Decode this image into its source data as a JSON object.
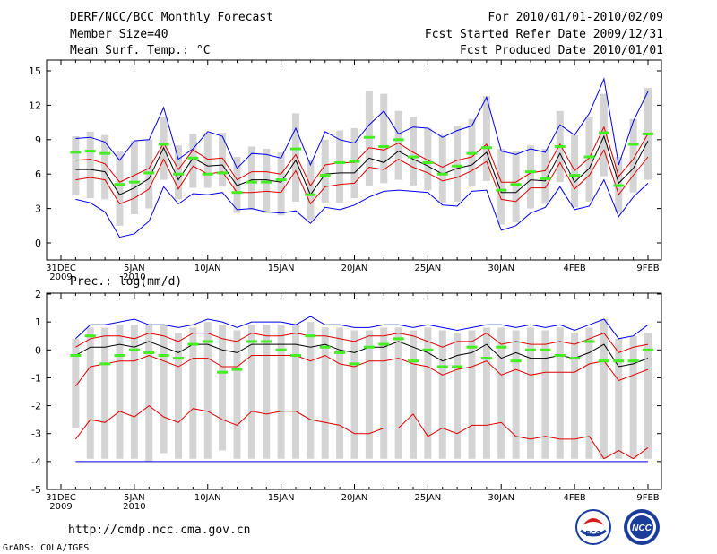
{
  "header": {
    "title": "DERF/NCC/BCC Monthly Forecast",
    "member_size": "Member Size=40",
    "variable": "Mean Surf. Temp.: °C",
    "forecast_period": "For 2010/01/01-2010/02/09",
    "fcst_started": "Fcst Started Refer Date 2009/12/31",
    "fcst_produced": "Fcst Produced Date 2010/01/01"
  },
  "footer": {
    "url": "http://cmdp.ncc.cma.gov.cn",
    "grads": "GrADS: COLA/IGES",
    "logo_bcc": "BCC",
    "logo_ncc": "NCC"
  },
  "colors": {
    "box": "#d4d4d4",
    "median": "#000000",
    "quartile": "#dd0000",
    "extreme": "#0000ee",
    "obs": "#44ee22",
    "minbase": "#0000ee"
  },
  "chart_data": [
    {
      "type": "box",
      "title": "Mean Surf. Temp.: °C",
      "x_start_day": 0,
      "x_end_day": 40,
      "xlim": [
        0,
        40
      ],
      "ylim": [
        -1,
        16
      ],
      "yticks": [
        0,
        3,
        6,
        9,
        12,
        15
      ],
      "xtick_days": [
        0,
        5,
        10,
        15,
        20,
        25,
        30,
        35,
        40
      ],
      "xtick_labels": [
        "31DEC\n2009",
        "5JAN\n2010",
        "10JAN",
        "15JAN",
        "20JAN",
        "25JAN",
        "30JAN",
        "4FEB",
        "9FEB"
      ],
      "series": [
        {
          "name": "median",
          "values": [
            6.4,
            6.4,
            6.2,
            4.2,
            4.8,
            5.6,
            8.3,
            5.5,
            7.4,
            6.7,
            6.8,
            5.0,
            5.5,
            5.5,
            5.3,
            7.2,
            4.2,
            6.0,
            6.1,
            6.1,
            7.4,
            7.0,
            8.0,
            7.3,
            6.7,
            6.0,
            6.5,
            6.8,
            7.9,
            4.4,
            4.4,
            5.5,
            5.4,
            7.8,
            5.3,
            6.5,
            9.3,
            5.2,
            6.5,
            8.9
          ]
        },
        {
          "name": "q_upper",
          "values": [
            7.2,
            7.3,
            6.9,
            5.3,
            5.9,
            6.5,
            8.7,
            6.4,
            8.1,
            7.3,
            7.4,
            5.5,
            6.2,
            6.2,
            6.0,
            7.7,
            5.0,
            6.8,
            7.0,
            7.0,
            8.3,
            8.1,
            8.7,
            7.9,
            7.2,
            6.6,
            7.2,
            7.5,
            8.6,
            5.3,
            5.3,
            6.1,
            6.3,
            8.6,
            6.3,
            7.4,
            10.1,
            5.8,
            7.3,
            9.5
          ]
        },
        {
          "name": "q_lower",
          "values": [
            5.5,
            5.7,
            5.5,
            3.4,
            3.9,
            4.7,
            7.3,
            4.7,
            6.7,
            6.0,
            6.2,
            4.4,
            4.4,
            4.5,
            4.4,
            6.3,
            3.4,
            4.9,
            5.1,
            5.2,
            6.6,
            6.4,
            7.3,
            6.6,
            6.1,
            5.4,
            5.7,
            6.3,
            7.1,
            3.8,
            3.6,
            4.8,
            4.8,
            7.0,
            4.7,
            5.9,
            8.1,
            4.2,
            5.9,
            7.5
          ]
        },
        {
          "name": "max",
          "values": [
            9.1,
            9.2,
            8.8,
            7.2,
            8.9,
            9.0,
            11.8,
            7.3,
            8.2,
            9.7,
            9.3,
            6.5,
            7.8,
            7.7,
            7.4,
            10.0,
            6.8,
            9.7,
            9.0,
            8.7,
            10.3,
            11.5,
            9.5,
            10.1,
            10.0,
            9.2,
            9.8,
            10.2,
            12.7,
            8.0,
            7.7,
            8.2,
            7.9,
            10.3,
            9.4,
            11.3,
            14.3,
            6.8,
            10.6,
            13.2
          ]
        },
        {
          "name": "min",
          "values": [
            3.8,
            3.5,
            2.7,
            0.5,
            0.8,
            1.9,
            4.9,
            3.4,
            4.3,
            4.2,
            4.4,
            2.9,
            3.0,
            2.7,
            2.6,
            2.8,
            1.7,
            3.1,
            2.9,
            3.3,
            4.0,
            4.5,
            4.6,
            4.5,
            4.4,
            3.3,
            3.2,
            4.5,
            4.6,
            1.1,
            1.5,
            2.6,
            3.1,
            4.9,
            2.9,
            3.2,
            5.5,
            2.3,
            4.0,
            5.2
          ]
        },
        {
          "name": "obs",
          "values": [
            7.9,
            8.0,
            7.8,
            5.1,
            5.3,
            6.1,
            8.6,
            6.0,
            7.4,
            6.0,
            6.1,
            4.4,
            5.3,
            5.3,
            5.5,
            8.2,
            4.2,
            5.9,
            7.0,
            7.1,
            9.2,
            8.4,
            9.0,
            7.5,
            7.0,
            6.0,
            6.7,
            7.8,
            8.3,
            4.6,
            5.1,
            6.2,
            5.6,
            8.4,
            5.9,
            7.5,
            9.6,
            5.0,
            8.6,
            9.5
          ]
        },
        {
          "name": "box_top",
          "values": [
            9.3,
            9.7,
            9.4,
            8.0,
            8.9,
            9.0,
            11.0,
            8.5,
            9.5,
            9.6,
            9.6,
            7.5,
            8.4,
            8.2,
            7.9,
            11.3,
            7.2,
            9.0,
            9.8,
            10.0,
            13.2,
            13.0,
            11.5,
            11.0,
            10.0,
            9.4,
            10.2,
            10.8,
            12.8,
            8.2,
            8.0,
            8.5,
            8.2,
            11.5,
            9.4,
            11.0,
            13.0,
            7.5,
            10.8,
            13.5
          ]
        },
        {
          "name": "box_bottom",
          "values": [
            4.2,
            3.9,
            3.8,
            1.5,
            2.5,
            3.0,
            5.5,
            3.8,
            4.8,
            4.8,
            4.9,
            2.6,
            2.9,
            2.6,
            2.4,
            3.6,
            2.0,
            3.5,
            3.5,
            3.9,
            5.0,
            5.2,
            5.5,
            5.0,
            4.6,
            3.5,
            3.6,
            4.9,
            5.4,
            1.6,
            1.8,
            3.0,
            3.4,
            5.3,
            3.1,
            3.6,
            5.8,
            2.7,
            4.4,
            5.5
          ]
        }
      ]
    },
    {
      "type": "box",
      "title": "Prec.: log(mm/d)",
      "x_start_day": 0,
      "x_end_day": 40,
      "xlim": [
        0,
        40
      ],
      "ylim": [
        -5,
        2
      ],
      "yticks": [
        -5,
        -4,
        -3,
        -2,
        -1,
        0,
        1,
        2
      ],
      "xtick_days": [
        0,
        5,
        10,
        15,
        20,
        25,
        30,
        35,
        40
      ],
      "xtick_labels": [
        "31DEC\n2009",
        "5JAN\n2010",
        "10JAN",
        "15JAN",
        "20JAN",
        "25JAN",
        "30JAN",
        "4FEB",
        "9FEB"
      ],
      "series": [
        {
          "name": "median",
          "values": [
            -0.2,
            0.1,
            0.1,
            0.2,
            0.1,
            0.3,
            0.1,
            -0.1,
            0.2,
            0.2,
            0.0,
            -0.1,
            0.2,
            0.2,
            0.2,
            0.2,
            0.1,
            0.2,
            0.0,
            -0.1,
            0.1,
            0.1,
            0.3,
            0.1,
            -0.1,
            -0.4,
            -0.2,
            -0.1,
            0.2,
            -0.3,
            -0.1,
            -0.3,
            -0.3,
            -0.2,
            -0.3,
            -0.1,
            0.2,
            -0.6,
            -0.5,
            -0.3
          ]
        },
        {
          "name": "q_upper",
          "values": [
            0.1,
            0.4,
            0.5,
            0.5,
            0.4,
            0.6,
            0.5,
            0.3,
            0.6,
            0.6,
            0.4,
            0.3,
            0.6,
            0.5,
            0.5,
            0.6,
            0.5,
            0.5,
            0.4,
            0.3,
            0.5,
            0.5,
            0.6,
            0.5,
            0.3,
            0.1,
            0.3,
            0.3,
            0.6,
            0.2,
            0.3,
            0.2,
            0.2,
            0.3,
            0.2,
            0.4,
            0.6,
            -0.1,
            0.1,
            0.2
          ]
        },
        {
          "name": "q_lower",
          "values": [
            -1.3,
            -0.6,
            -0.5,
            -0.4,
            -0.4,
            -0.2,
            -0.4,
            -0.6,
            -0.3,
            -0.3,
            -0.6,
            -0.6,
            -0.2,
            -0.2,
            -0.2,
            -0.2,
            -0.4,
            -0.2,
            -0.5,
            -0.6,
            -0.4,
            -0.4,
            -0.3,
            -0.5,
            -0.6,
            -0.9,
            -0.7,
            -0.6,
            -0.4,
            -0.9,
            -0.7,
            -0.9,
            -0.8,
            -0.8,
            -0.8,
            -0.5,
            -0.4,
            -1.1,
            -0.9,
            -0.7
          ]
        },
        {
          "name": "max",
          "values": [
            0.4,
            0.9,
            0.9,
            1.0,
            1.1,
            0.9,
            0.9,
            0.8,
            0.9,
            1.1,
            1.0,
            0.8,
            1.0,
            1.0,
            1.0,
            0.9,
            1.2,
            0.9,
            0.9,
            0.8,
            0.8,
            0.9,
            0.9,
            0.8,
            0.9,
            0.8,
            0.7,
            0.8,
            0.9,
            0.9,
            0.8,
            0.9,
            0.8,
            0.9,
            0.7,
            0.9,
            1.1,
            0.4,
            0.5,
            0.9
          ]
        },
        {
          "name": "q_tail",
          "values": [
            -3.2,
            -2.5,
            -2.6,
            -2.2,
            -2.4,
            -2.0,
            -2.4,
            -2.6,
            -2.1,
            -2.2,
            -2.5,
            -2.7,
            -2.2,
            -2.3,
            -2.2,
            -2.2,
            -2.5,
            -2.6,
            -2.7,
            -3.0,
            -3.0,
            -2.8,
            -2.8,
            -2.3,
            -3.1,
            -2.8,
            -3.0,
            -2.7,
            -2.7,
            -2.6,
            -3.1,
            -3.2,
            -3.1,
            -3.2,
            -3.2,
            -3.1,
            -3.9,
            -3.6,
            -3.9,
            -3.5
          ]
        },
        {
          "name": "obs",
          "values": [
            -0.2,
            0.5,
            -0.5,
            -0.2,
            0.0,
            -0.1,
            -0.2,
            -0.3,
            0.2,
            0.3,
            -0.8,
            -0.7,
            0.3,
            0.3,
            0.0,
            -0.2,
            0.5,
            0.1,
            -0.1,
            -0.5,
            0.1,
            0.2,
            0.4,
            -0.4,
            0.0,
            -0.6,
            -0.6,
            0.1,
            -0.3,
            0.1,
            -0.4,
            0.0,
            0.0,
            -0.2,
            -0.3,
            0.3,
            -0.4,
            -0.4,
            -0.4,
            0.0
          ]
        },
        {
          "name": "box_top",
          "values": [
            0.4,
            0.8,
            0.8,
            0.9,
            0.9,
            0.9,
            0.9,
            0.6,
            0.8,
            1.0,
            0.9,
            0.7,
            0.9,
            0.9,
            0.9,
            0.9,
            1.0,
            0.8,
            0.8,
            0.7,
            0.7,
            0.8,
            0.8,
            0.7,
            0.8,
            0.7,
            0.6,
            0.7,
            0.8,
            0.8,
            0.7,
            0.8,
            0.7,
            0.8,
            0.6,
            0.8,
            1.1,
            0.4,
            0.5,
            0.6
          ]
        },
        {
          "name": "box_bottom",
          "values": [
            -2.8,
            -3.9,
            -3.9,
            -3.9,
            -3.9,
            -4.0,
            -3.7,
            -3.9,
            -3.9,
            -3.9,
            -3.6,
            -3.9,
            -3.9,
            -3.9,
            -3.9,
            -3.9,
            -3.9,
            -3.9,
            -3.9,
            -3.9,
            -3.9,
            -3.9,
            -3.9,
            -3.9,
            -3.9,
            -3.9,
            -3.9,
            -3.9,
            -3.9,
            -3.9,
            -3.9,
            -3.9,
            -3.9,
            -3.9,
            -3.9,
            -3.9,
            -3.9,
            -3.9,
            -3.9,
            -3.9
          ]
        },
        {
          "name": "min_base",
          "values": [
            -4.0,
            -4.0,
            -4.0,
            -4.0,
            -4.0,
            -4.0,
            -4.0,
            -4.0,
            -4.0,
            -4.0,
            -4.0,
            -4.0,
            -4.0,
            -4.0,
            -4.0,
            -4.0,
            -4.0,
            -4.0,
            -4.0,
            -4.0,
            -4.0,
            -4.0,
            -4.0,
            -4.0,
            -4.0,
            -4.0,
            -4.0,
            -4.0,
            -4.0,
            -4.0,
            -4.0,
            -4.0,
            -4.0,
            -4.0,
            -4.0,
            -4.0,
            -4.0,
            -4.0,
            -4.0,
            -4.0
          ]
        }
      ]
    }
  ]
}
